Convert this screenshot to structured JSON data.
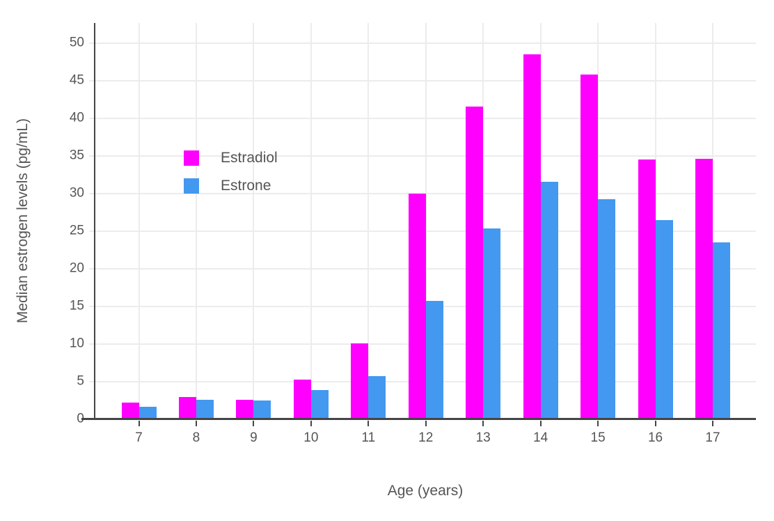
{
  "chart_data": {
    "type": "bar",
    "title": "",
    "xlabel": "Age (years)",
    "ylabel": "Median estrogen levels (pg/mL)",
    "categories": [
      "7",
      "8",
      "9",
      "10",
      "11",
      "12",
      "13",
      "14",
      "15",
      "16",
      "17"
    ],
    "series": [
      {
        "name": "Estradiol",
        "color": "#ff00ff",
        "values": [
          2.2,
          3.0,
          2.6,
          5.3,
          10.1,
          30.0,
          41.6,
          48.5,
          45.8,
          34.5,
          34.6
        ]
      },
      {
        "name": "Estrone",
        "color": "#4398f0",
        "values": [
          1.7,
          2.6,
          2.5,
          3.9,
          5.7,
          15.7,
          25.4,
          31.6,
          29.3,
          26.5,
          23.5
        ]
      }
    ],
    "ylim": [
      0,
      52.7
    ],
    "yticks": [
      0,
      5,
      10,
      15,
      20,
      25,
      30,
      35,
      40,
      45,
      50
    ],
    "grid": true,
    "legend_position": "inside-upper-left"
  },
  "colors": {
    "axis_line": "#444444",
    "grid_line": "#ececec",
    "text": "#555555",
    "background": "#ffffff"
  }
}
